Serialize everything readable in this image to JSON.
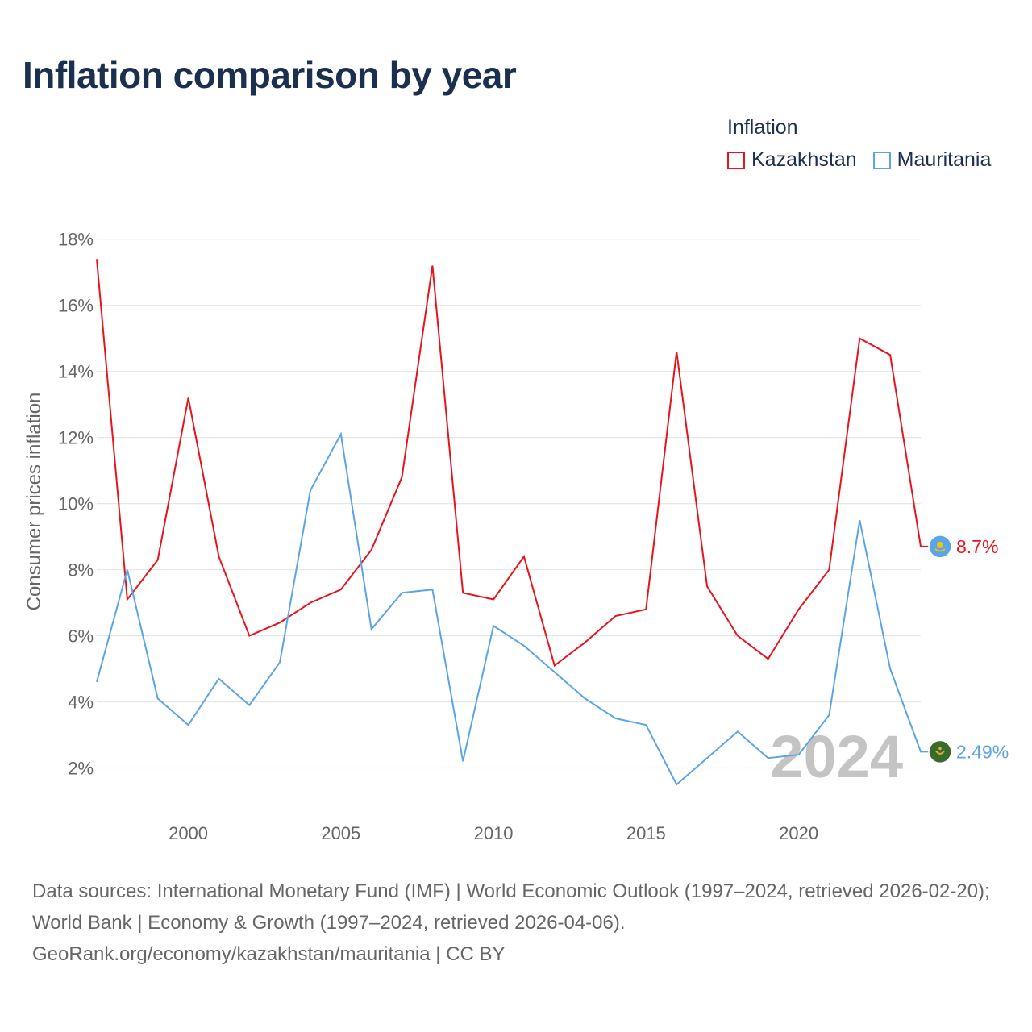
{
  "title": "Inflation comparison by year",
  "legend": {
    "title": "Inflation",
    "items": [
      {
        "label": "Kazakhstan",
        "color": "#e8141c"
      },
      {
        "label": "Mauritania",
        "color": "#5ba4e6"
      }
    ]
  },
  "chart_data": {
    "type": "line",
    "ylabel": "Consumer prices inflation",
    "ylim": [
      0.5,
      18.7
    ],
    "xlim": [
      1997,
      2024
    ],
    "yticks": [
      2,
      4,
      6,
      8,
      10,
      12,
      14,
      16,
      18
    ],
    "ytick_labels": [
      "2%",
      "4%",
      "6%",
      "8%",
      "10%",
      "12%",
      "14%",
      "16%",
      "18%"
    ],
    "xticks": [
      2000,
      2005,
      2010,
      2015,
      2020
    ],
    "xtick_labels": [
      "2000",
      "2005",
      "2010",
      "2015",
      "2020"
    ],
    "x": [
      1997,
      1998,
      1999,
      2000,
      2001,
      2002,
      2003,
      2004,
      2005,
      2006,
      2007,
      2008,
      2009,
      2010,
      2011,
      2012,
      2013,
      2014,
      2015,
      2016,
      2017,
      2018,
      2019,
      2020,
      2021,
      2022,
      2023,
      2024
    ],
    "series": [
      {
        "name": "Kazakhstan",
        "color": "#e8141c",
        "values": [
          17.4,
          7.1,
          8.3,
          13.2,
          8.4,
          6.0,
          6.4,
          7.0,
          7.4,
          8.6,
          10.8,
          17.2,
          7.3,
          7.1,
          8.4,
          5.1,
          5.8,
          6.6,
          6.8,
          14.6,
          7.5,
          6.0,
          5.3,
          6.8,
          8.0,
          15.0,
          14.5,
          8.7
        ],
        "end_label": "8.7%"
      },
      {
        "name": "Mauritania",
        "color": "#5ba4e6",
        "values": [
          4.6,
          8.0,
          4.1,
          3.3,
          4.7,
          3.9,
          5.2,
          10.4,
          12.1,
          6.2,
          7.3,
          7.4,
          2.2,
          6.3,
          5.7,
          4.9,
          4.1,
          3.5,
          3.3,
          1.5,
          2.3,
          3.1,
          2.3,
          2.4,
          3.6,
          9.5,
          5.0,
          2.49
        ],
        "end_label": "2.49%"
      }
    ],
    "watermark_year": "2024"
  },
  "footer": {
    "line1": "Data sources: International Monetary Fund (IMF) | World Economic Outlook (1997–2024, retrieved 2026-02-20); World Bank | Economy & Growth (1997–2024, retrieved 2026-04-06).",
    "line2": "GeoRank.org/economy/kazakhstan/mauritania | CC BY"
  }
}
